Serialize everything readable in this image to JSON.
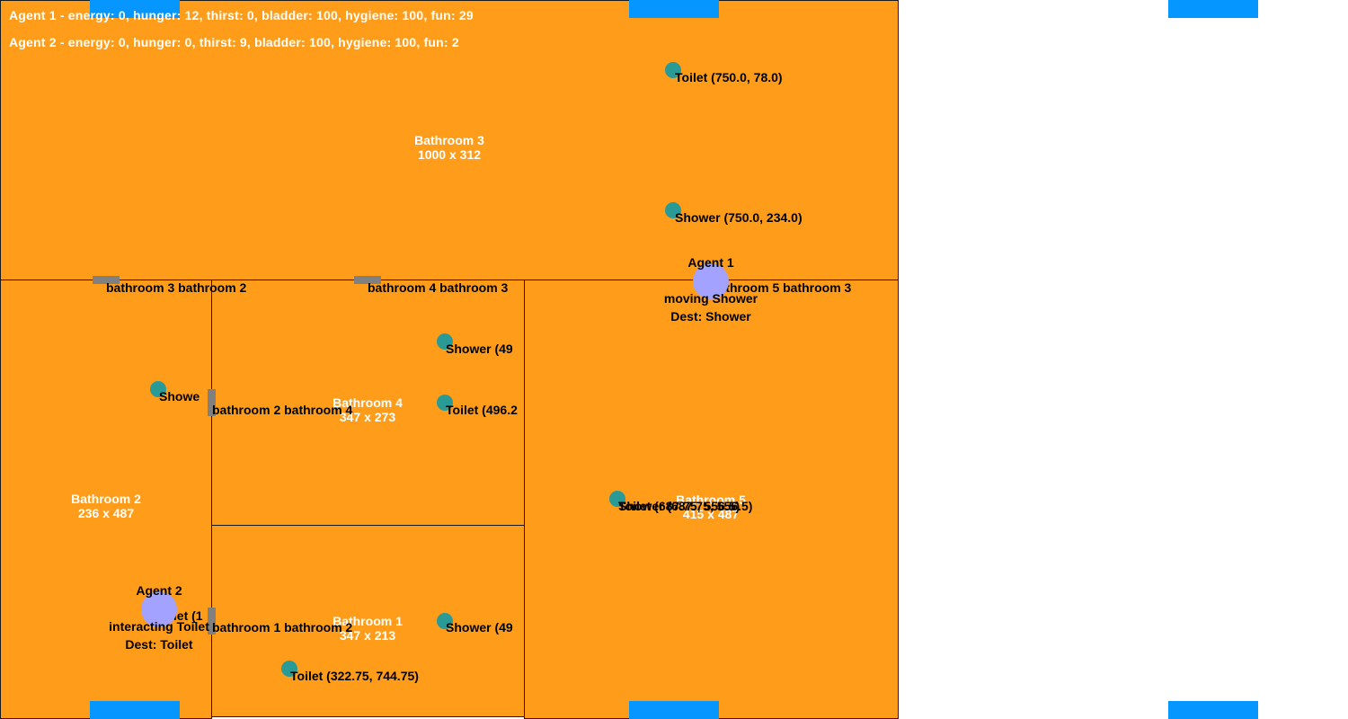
{
  "status": {
    "agent1": "Agent 1 - energy: 0, hunger: 12, thirst: 0, bladder: 100, hygiene: 100, fun: 29",
    "agent2": "Agent 2 - energy: 0, hunger: 0, thirst: 9, bladder: 100, hygiene: 100, fun: 2"
  },
  "rooms": {
    "bathroom3": {
      "name": "Bathroom 3",
      "size": "1000 x 312"
    },
    "bathroom2": {
      "name": "Bathroom 2",
      "size": "236 x 487"
    },
    "bathroom4": {
      "name": "Bathroom 4",
      "size": "347 x 273"
    },
    "bathroom1": {
      "name": "Bathroom 1",
      "size": "347 x 213"
    },
    "bathroom5": {
      "name": "Bathroom 5",
      "size": "415 x 487"
    }
  },
  "doors": {
    "d32": "bathroom 3 bathroom 2",
    "d43": "bathroom 4 bathroom 3",
    "d53": "bathroom 5 bathroom 3",
    "d24": "bathroom 2 bathroom 4",
    "d12": "bathroom 1 bathroom 2"
  },
  "objects": {
    "toilet_b3": "Toilet (750.0, 78.0)",
    "shower_b3": "Shower (750.0, 234.0)",
    "shower_b4": "Shower (49",
    "toilet_b4": "Toilet (496.2",
    "shower_b2": "Showe",
    "toilet_b2": "ilet (1",
    "shower_b1": "Shower (49",
    "toilet_b1": "Toilet (322.75, 744.75)",
    "shower_b5": "Shower (687.75, 556.5)",
    "toilet_b5": "Toilet (687.75, 556.5)"
  },
  "agents": {
    "agent1": {
      "name": "Agent 1",
      "action": "moving Shower",
      "dest": "Dest: Shower"
    },
    "agent2": {
      "name": "Agent 2",
      "action": "interacting Toilet",
      "dest": "Dest: Toilet"
    }
  },
  "colors": {
    "room": "#ff9d1a",
    "object": "#2a9a96",
    "agent": "#a3a3ff",
    "door": "#808080",
    "window": "#0596ff"
  }
}
